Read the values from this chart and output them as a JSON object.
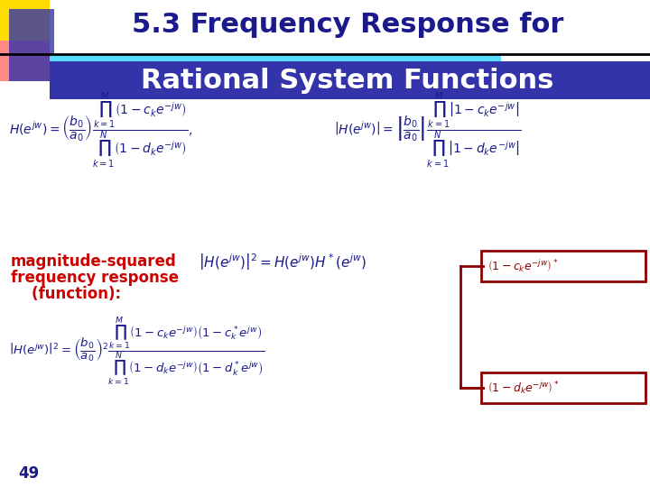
{
  "title_line1": "5.3 Frequency Response for",
  "title_line2": "Rational System Functions",
  "title_color": "#1a1a8c",
  "title_bg_color": "#ffffff",
  "header_bar_color": "#00aaff",
  "slide_bg": "#ffffff",
  "accent_yellow": "#ffdd00",
  "accent_pink": "#ff8888",
  "accent_blue": "#3333aa",
  "page_number": "49",
  "eq1": "H\\left(e^{jw}\\right)=\\left(\\frac{b_0}{a_0}\\right)\\frac{\\prod_{k=1}^{M}\\left(1-c_k e^{-jw}\\right)}{\\prod_{k=1}^{N}\\left(1-d_k e^{-jw}\\right)}",
  "eq2": "\\left|H\\left(e^{jw}\\right)\\right|=\\left|\\frac{b_0}{a_0}\\right|\\frac{\\prod_{k=1}^{M}\\left|1-c_k e^{-jw}\\right|}{\\prod_{k=1}^{N}\\left|1-d_k e^{-jw}\\right|}",
  "label_text": "magnitude-squared\nfrequency response\n    (function):",
  "eq3": "\\left|H\\left(e^{jw}\\right)\\right|^2 = H\\left(e^{jw}\\right)H^*\\left(e^{jw}\\right)",
  "eq3_right": "\\left(1-c_k e^{-jw}\\right)^*",
  "eq4": "\\left|H\\left(e^{jw}\\right)\\right|^2=\\left(\\frac{b_0}{a_0}\\right)^2\\frac{\\prod_{k=1}^{M}\\left(1-c_k e^{-jw}\\right)\\left(1-c_k^* e^{jw}\\right)}{\\prod_{k=1}^{N}\\left(1-d_k e^{-jw}\\right)\\left(1-d_k^* e^{jw}\\right)}",
  "eq4_right": "\\left(1-d_k e^{-jw}\\right)^*",
  "blue": "#1a1a8c",
  "red": "#cc0000",
  "dark_red": "#8b0000"
}
